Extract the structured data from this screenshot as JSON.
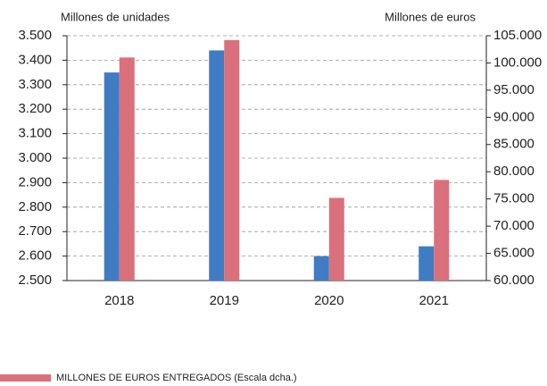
{
  "chart_data": {
    "type": "bar",
    "y_label": "Millones de unidades",
    "y2_label": "Millones de euros",
    "categories": [
      "2018",
      "2019",
      "2020",
      "2021"
    ],
    "series": [
      {
        "color": "#3f7cc4",
        "values": [
          3350,
          3440,
          2600,
          2640
        ]
      },
      {
        "name": "MILLONES DE EUROS ENTREGADOS (Escala dcha.)",
        "color": "#d9707c",
        "axis": "y2",
        "values": [
          101000,
          104200,
          75200,
          78500
        ]
      }
    ],
    "ylim": [
      2500,
      3500
    ],
    "yticks": [
      {
        "value": 2500,
        "label": "2.500"
      },
      {
        "value": 2600,
        "label": "2.600"
      },
      {
        "value": 2700,
        "label": "2.700"
      },
      {
        "value": 2800,
        "label": "2.800"
      },
      {
        "value": 2900,
        "label": "2.900"
      },
      {
        "value": 3000,
        "label": "3.000"
      },
      {
        "value": 3100,
        "label": "3.100"
      },
      {
        "value": 3200,
        "label": "3.200"
      },
      {
        "value": 3300,
        "label": "3.300"
      },
      {
        "value": 3400,
        "label": "3.400"
      },
      {
        "value": 3500,
        "label": "3.500"
      }
    ],
    "y2lim": [
      60000,
      105000
    ],
    "y2ticks": [
      {
        "value": 60000,
        "label": "60.000"
      },
      {
        "value": 65000,
        "label": "65.000"
      },
      {
        "value": 70000,
        "label": "70.000"
      },
      {
        "value": 75000,
        "label": "75.000"
      },
      {
        "value": 80000,
        "label": "80.000"
      },
      {
        "value": 85000,
        "label": "85.000"
      },
      {
        "value": 90000,
        "label": "90.000"
      },
      {
        "value": 95000,
        "label": "95.000"
      },
      {
        "value": 100000,
        "label": "100.000"
      },
      {
        "value": 105000,
        "label": "105.000"
      }
    ],
    "grid": true,
    "legend": "bottom-left"
  }
}
